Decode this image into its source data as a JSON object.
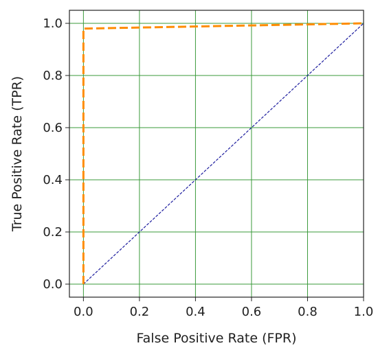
{
  "chart_data": {
    "type": "line",
    "title": "",
    "xlabel": "False Positive Rate (FPR)",
    "ylabel": "True Positive Rate (TPR)",
    "xlim": [
      -0.05,
      1.0
    ],
    "ylim": [
      -0.05,
      1.05
    ],
    "xticks": [
      0.0,
      0.2,
      0.4,
      0.6,
      0.8,
      1.0
    ],
    "yticks": [
      0.0,
      0.2,
      0.4,
      0.6,
      0.8,
      1.0
    ],
    "xtick_labels": [
      "0.0",
      "0.2",
      "0.4",
      "0.6",
      "0.8",
      "1.0"
    ],
    "ytick_labels": [
      "0.0",
      "0.2",
      "0.4",
      "0.6",
      "0.8",
      "1.0"
    ],
    "grid": true,
    "grid_color": "#3a9a3a",
    "series": [
      {
        "x": [
          0.0,
          0.0,
          0.01,
          1.0
        ],
        "y": [
          0.0,
          0.98,
          0.98,
          1.0
        ],
        "color": "#ff8c00",
        "style": "dashed"
      },
      {
        "x": [
          0.0,
          1.0
        ],
        "y": [
          0.0,
          1.0
        ],
        "color": "#1c1c9e",
        "style": "dashed"
      }
    ]
  }
}
